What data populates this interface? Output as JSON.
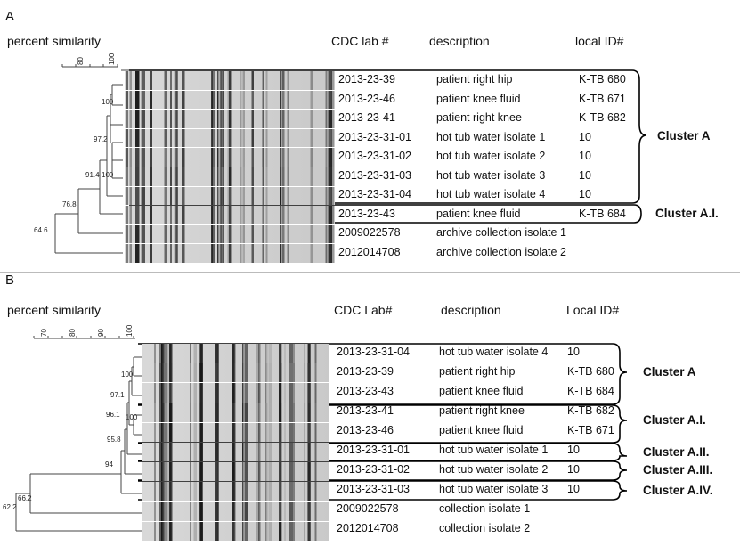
{
  "panels": [
    {
      "letter": "A",
      "header": {
        "similarity": "percent similarity",
        "lab": "CDC lab #",
        "desc": "description",
        "local": "local ID#"
      },
      "scale_ticks": [
        "80",
        "100"
      ],
      "node_values": [
        "100",
        "97.2",
        "100",
        "91.4",
        "76.8",
        "64.6"
      ],
      "rows": [
        {
          "lab": "2013-23-39",
          "desc": "patient right hip",
          "local": "K-TB 680"
        },
        {
          "lab": "2013-23-46",
          "desc": "patient knee fluid",
          "local": "K-TB 671"
        },
        {
          "lab": "2013-23-41",
          "desc": "patient right knee",
          "local": "K-TB 682"
        },
        {
          "lab": "2013-23-31-01",
          "desc": "hot tub water isolate 1",
          "local": "10"
        },
        {
          "lab": "2013-23-31-02",
          "desc": "hot tub water isolate 2",
          "local": "10"
        },
        {
          "lab": "2013-23-31-03",
          "desc": "hot tub water isolate 3",
          "local": "10"
        },
        {
          "lab": "2013-23-31-04",
          "desc": "hot tub water isolate 4",
          "local": "10"
        },
        {
          "lab": "2013-23-43",
          "desc": "patient knee fluid",
          "local": "K-TB 684"
        },
        {
          "lab": "2009022578",
          "desc": "archive collection isolate 1",
          "local": ""
        },
        {
          "lab": "2012014708",
          "desc": "archive collection isolate 2",
          "local": ""
        }
      ],
      "clusters": [
        "Cluster A",
        "Cluster A.I."
      ]
    },
    {
      "letter": "B",
      "header": {
        "similarity": "percent similarity",
        "lab": "CDC Lab#",
        "desc": "description",
        "local": "Local ID#"
      },
      "scale_ticks": [
        "70",
        "80",
        "90",
        "100"
      ],
      "node_values": [
        "100",
        "97.1",
        "100",
        "96.1",
        "95.8",
        "94",
        "66.2",
        "62.2"
      ],
      "rows": [
        {
          "lab": "2013-23-31-04",
          "desc": "hot tub water isolate 4",
          "local": "10"
        },
        {
          "lab": "2013-23-39",
          "desc": "patient right hip",
          "local": "K-TB 680"
        },
        {
          "lab": "2013-23-43",
          "desc": "patient knee fluid",
          "local": "K-TB 684"
        },
        {
          "lab": "2013-23-41",
          "desc": "patient right knee",
          "local": "K-TB 682"
        },
        {
          "lab": "2013-23-46",
          "desc": "patient knee fluid",
          "local": "K-TB 671"
        },
        {
          "lab": "2013-23-31-01",
          "desc": "hot tub water isolate 1",
          "local": "10"
        },
        {
          "lab": "2013-23-31-02",
          "desc": "hot tub water isolate 2",
          "local": "10"
        },
        {
          "lab": "2013-23-31-03",
          "desc": "hot tub water isolate 3",
          "local": "10"
        },
        {
          "lab": "2009022578",
          "desc": "collection isolate 1",
          "local": ""
        },
        {
          "lab": "2012014708",
          "desc": "collection isolate 2",
          "local": ""
        }
      ],
      "clusters": [
        "Cluster A",
        "Cluster A.I.",
        "Cluster A.II.",
        "Cluster A.III.",
        "Cluster A.IV."
      ]
    }
  ]
}
